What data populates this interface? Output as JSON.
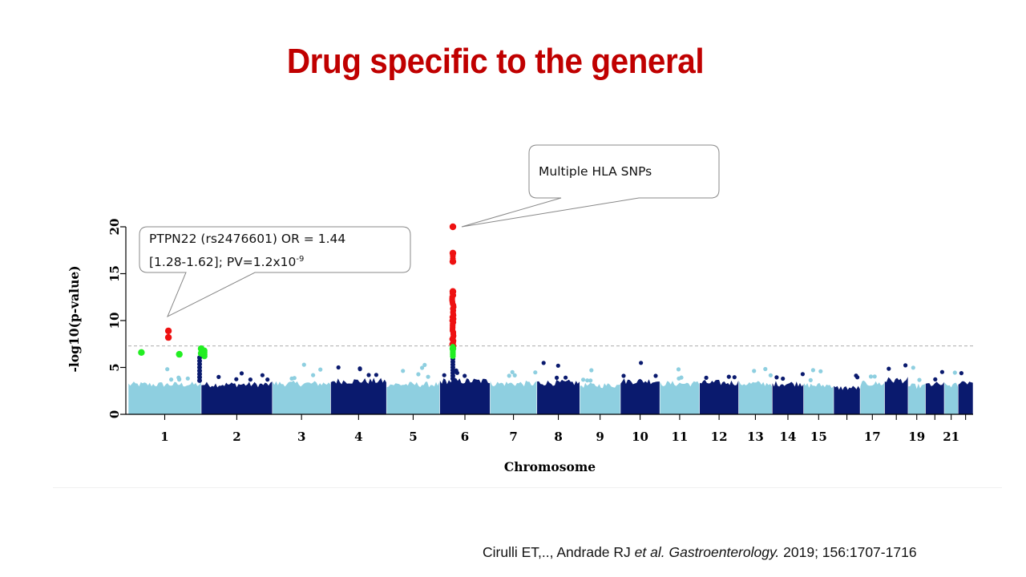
{
  "slide_title": "Drug specific to the general",
  "chart_data": {
    "type": "scatter",
    "subtype": "manhattan",
    "xlabel": "Chromosome",
    "ylabel": "-log10(p-value)",
    "ylim": [
      0,
      20
    ],
    "yticks": [
      0,
      5,
      10,
      15,
      20
    ],
    "xtick_labels": [
      "1",
      "2",
      "3",
      "4",
      "5",
      "6",
      "7",
      "8",
      "9",
      "10",
      "11",
      "12",
      "13",
      "14",
      "15",
      "17",
      "19",
      "21"
    ],
    "significance_threshold": 7.3,
    "colors": {
      "odd_chrom": "#8ecfe0",
      "even_chrom": "#0a1a6e",
      "significant": "#ee1111",
      "suggestive": "#22ee22",
      "threshold_line": "#bbbbbb"
    },
    "chromosomes": [
      {
        "chr": 1,
        "bulk_max": 3.5
      },
      {
        "chr": 2,
        "bulk_max": 3.5
      },
      {
        "chr": 3,
        "bulk_max": 3.6
      },
      {
        "chr": 4,
        "bulk_max": 3.9
      },
      {
        "chr": 5,
        "bulk_max": 3.5
      },
      {
        "chr": 6,
        "bulk_max": 3.9
      },
      {
        "chr": 7,
        "bulk_max": 3.6
      },
      {
        "chr": 8,
        "bulk_max": 3.7
      },
      {
        "chr": 9,
        "bulk_max": 3.4
      },
      {
        "chr": 10,
        "bulk_max": 3.9
      },
      {
        "chr": 11,
        "bulk_max": 3.6
      },
      {
        "chr": 12,
        "bulk_max": 3.7
      },
      {
        "chr": 13,
        "bulk_max": 3.6
      },
      {
        "chr": 14,
        "bulk_max": 3.6
      },
      {
        "chr": 15,
        "bulk_max": 3.4
      },
      {
        "chr": 16,
        "bulk_max": 3.1
      },
      {
        "chr": 17,
        "bulk_max": 3.6
      },
      {
        "chr": 18,
        "bulk_max": 4.0
      },
      {
        "chr": 19,
        "bulk_max": 3.3
      },
      {
        "chr": 20,
        "bulk_max": 3.5
      },
      {
        "chr": 21,
        "bulk_max": 3.4
      },
      {
        "chr": 22,
        "bulk_max": 3.8
      }
    ],
    "highlighted_snps": [
      {
        "chr": 1,
        "pos": 0.18,
        "p": 6.6,
        "class": "suggestive"
      },
      {
        "chr": 1,
        "pos": 0.55,
        "p": 8.9,
        "class": "significant"
      },
      {
        "chr": 1,
        "pos": 0.55,
        "p": 8.2,
        "class": "significant"
      },
      {
        "chr": 1,
        "pos": 0.7,
        "p": 6.4,
        "class": "suggestive"
      },
      {
        "chr": 1,
        "pos": 1.0,
        "p": 7.0,
        "class": "suggestive"
      },
      {
        "chr": 1,
        "pos": 1.0,
        "p": 6.5,
        "class": "suggestive"
      },
      {
        "chr": 6,
        "pos": 0.26,
        "p": 20.0,
        "class": "significant"
      },
      {
        "chr": 6,
        "pos": 0.26,
        "p": 17.2,
        "class": "significant"
      },
      {
        "chr": 6,
        "pos": 0.26,
        "p": 16.3,
        "class": "significant"
      },
      {
        "chr": 6,
        "pos": 0.26,
        "p": 13.1,
        "class": "significant"
      },
      {
        "chr": 6,
        "pos": 0.26,
        "p": 7.0,
        "class": "suggestive"
      }
    ],
    "annotations": [
      {
        "line1": "PTPN22 (rs2476601) OR = 1.44",
        "line2_pre": "[1.28-1.62]; PV=1.2x10",
        "line2_sup": "-9"
      },
      {
        "line1": "Multiple HLA SNPs"
      }
    ]
  },
  "citation": {
    "authors": "Cirulli ET,.., Andrade RJ ",
    "etal": "et al.",
    "journal": " Gastroenterology.",
    "details": " 2019; 156:1707-1716"
  }
}
